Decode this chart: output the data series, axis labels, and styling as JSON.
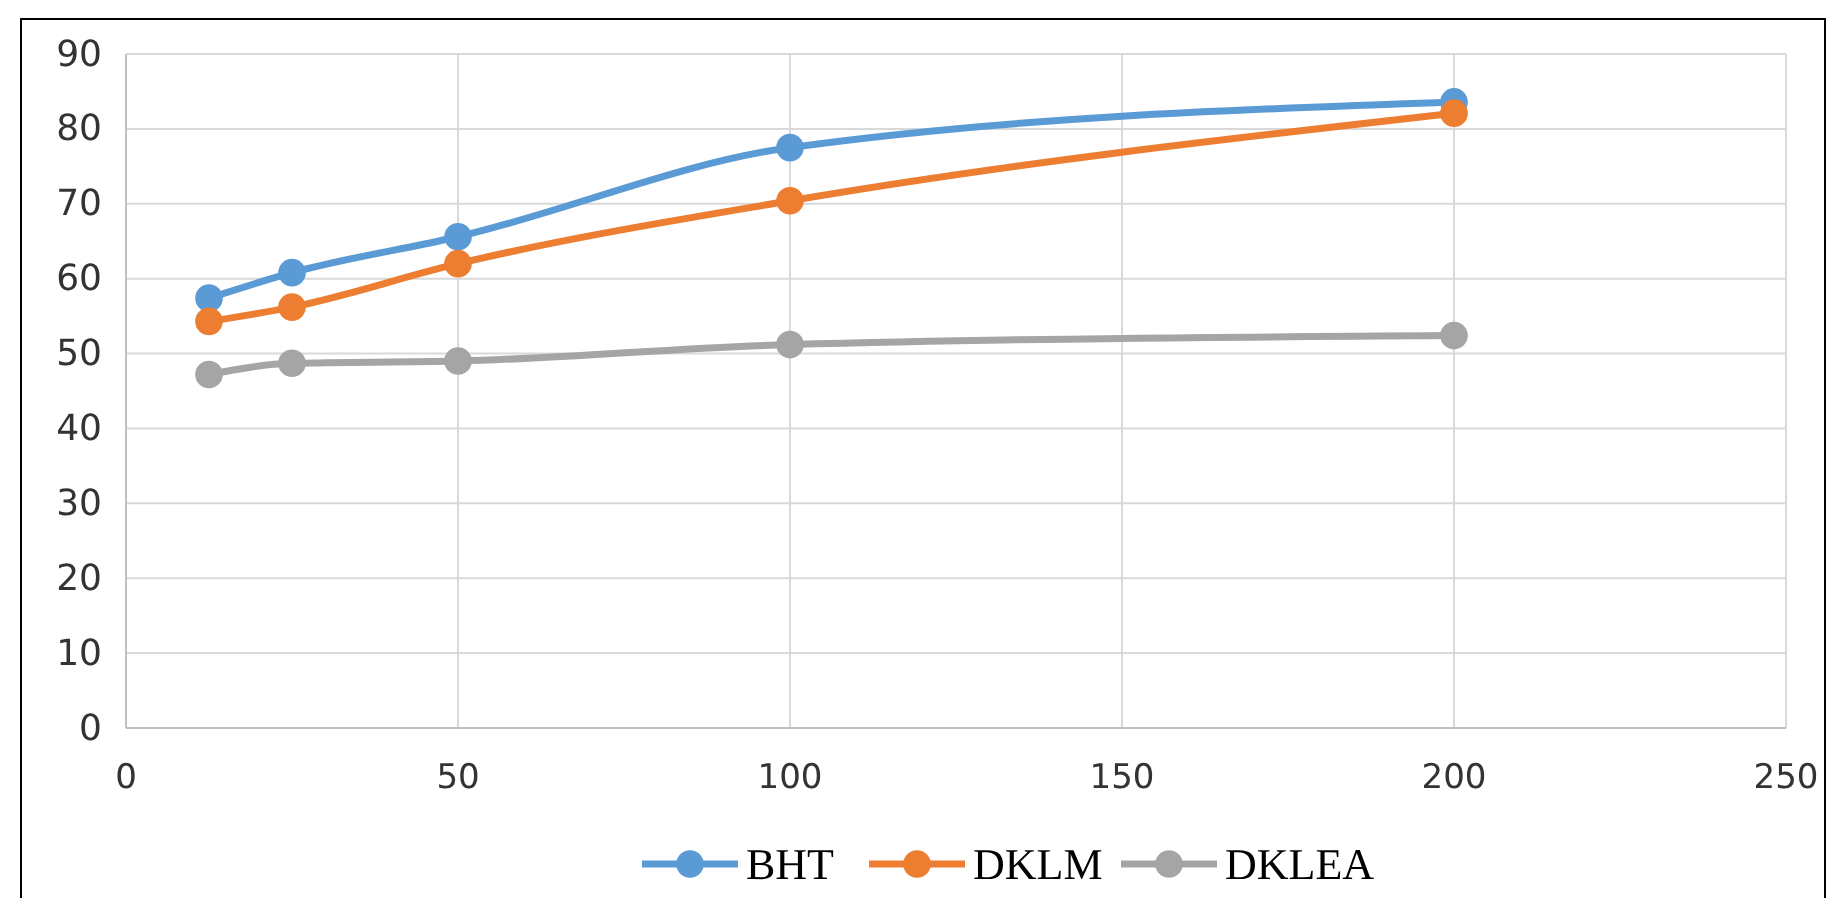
{
  "chart_data": {
    "type": "line",
    "x": [
      12.5,
      25,
      50,
      100,
      200
    ],
    "series": [
      {
        "name": "BHT",
        "color": "#5b9bd5",
        "values": [
          57.4,
          60.8,
          65.6,
          77.5,
          83.6
        ]
      },
      {
        "name": "DKLM",
        "color": "#ed7d31",
        "values": [
          54.3,
          56.2,
          62,
          70.4,
          82.1
        ]
      },
      {
        "name": "DKLEA",
        "color": "#a5a5a5",
        "values": [
          47.2,
          48.7,
          49,
          51.2,
          52.4
        ]
      }
    ],
    "xlim": [
      0,
      250
    ],
    "xticks": [
      0,
      50,
      100,
      150,
      200,
      250
    ],
    "ylim": [
      0,
      90
    ],
    "yticks": [
      0,
      10,
      20,
      30,
      40,
      50,
      60,
      70,
      80,
      90
    ],
    "grid": true,
    "legend": "bottom",
    "marker": "circle",
    "line_style": "solid"
  }
}
